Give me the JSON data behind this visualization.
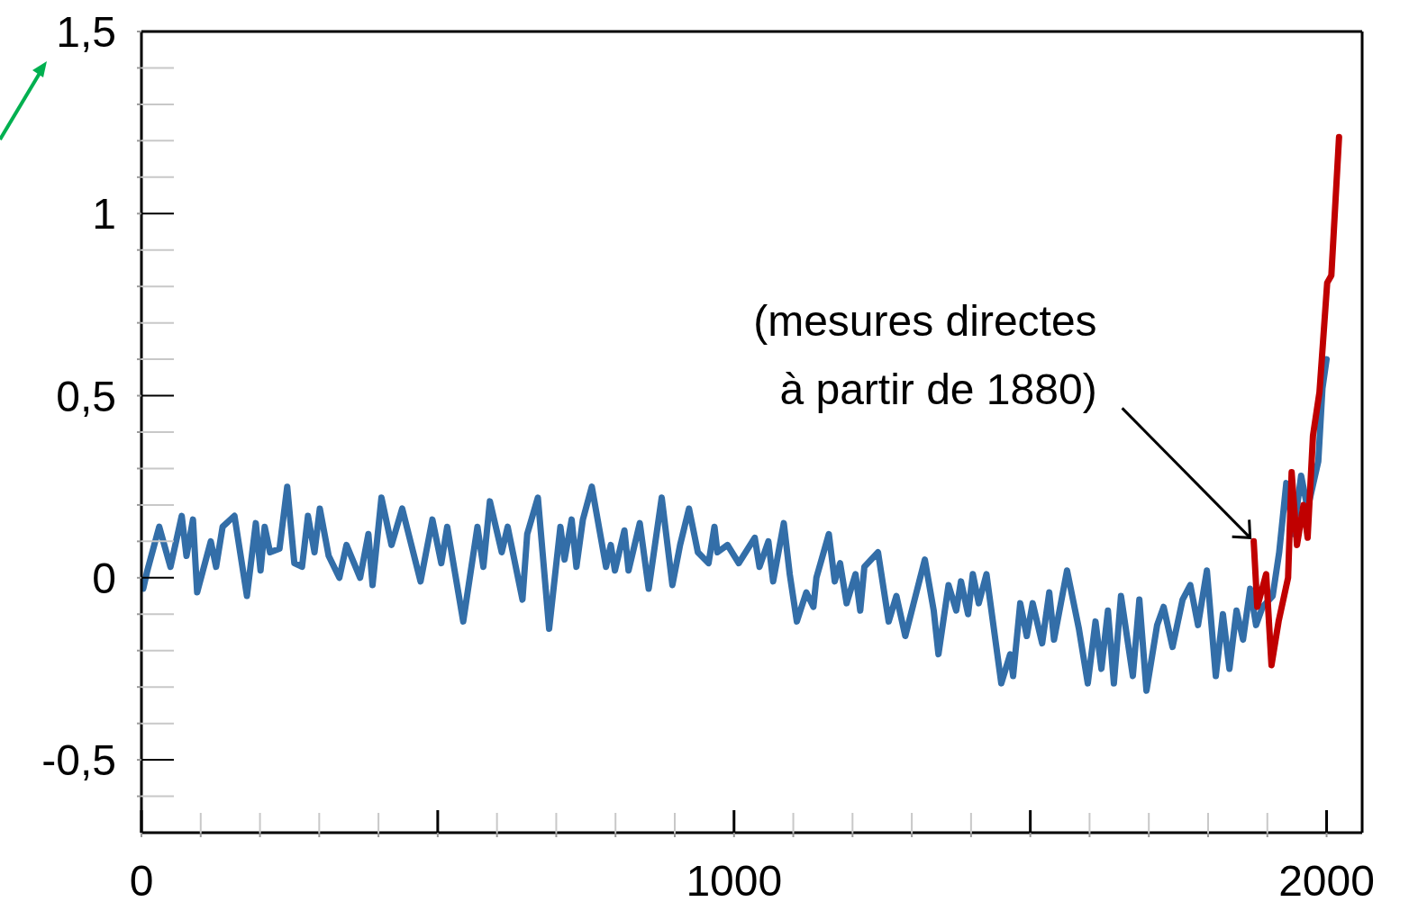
{
  "chart_data": {
    "type": "line",
    "xlim": [
      0,
      2060
    ],
    "ylim": [
      -0.7,
      1.5
    ],
    "xticks": [
      0,
      {
        "value": 100,
        "label": null
      },
      {
        "value": 200,
        "label": null
      },
      {
        "value": 300,
        "label": null
      },
      {
        "value": 400,
        "label": null
      },
      {
        "value": 500,
        "label": null
      },
      {
        "value": 600,
        "label": null
      },
      {
        "value": 700,
        "label": null
      },
      {
        "value": 800,
        "label": null
      },
      {
        "value": 900,
        "label": null
      },
      1000,
      {
        "value": 1100,
        "label": null
      },
      {
        "value": 1200,
        "label": null
      },
      {
        "value": 1300,
        "label": null
      },
      {
        "value": 1400,
        "label": null
      },
      {
        "value": 1500,
        "label": null
      },
      {
        "value": 1600,
        "label": null
      },
      {
        "value": 1700,
        "label": null
      },
      {
        "value": 1800,
        "label": null
      },
      {
        "value": 1900,
        "label": null
      },
      2000
    ],
    "yticks": [
      {
        "value": -0.6,
        "label": null
      },
      {
        "value": -0.5,
        "label": "-0,5"
      },
      {
        "value": -0.4,
        "label": null
      },
      {
        "value": -0.3,
        "label": null
      },
      {
        "value": -0.2,
        "label": null
      },
      {
        "value": -0.1,
        "label": null
      },
      0,
      {
        "value": 0.1,
        "label": null
      },
      {
        "value": 0.2,
        "label": null
      },
      {
        "value": 0.3,
        "label": null
      },
      {
        "value": 0.4,
        "label": null
      },
      {
        "value": 0.5,
        "label": "0,5"
      },
      {
        "value": 0.6,
        "label": null
      },
      {
        "value": 0.7,
        "label": null
      },
      {
        "value": 0.8,
        "label": null
      },
      {
        "value": 0.9,
        "label": null
      },
      1,
      {
        "value": 1.1,
        "label": null
      },
      {
        "value": 1.2,
        "label": null
      },
      {
        "value": 1.3,
        "label": null
      },
      {
        "value": 1.4,
        "label": null
      },
      {
        "value": 1.5,
        "label": "1,5"
      }
    ],
    "grid": false,
    "legend": false,
    "marker": "none",
    "line_style": "solid",
    "annotations": [
      {
        "text": "(mesures directes\nà partir de 1880)",
        "x": 1877,
        "y": 0.1
      }
    ],
    "series": [
      {
        "color": "#336ea8",
        "x": [
          3,
          10,
          30,
          49,
          68,
          76,
          87,
          94,
          117,
          126,
          137,
          157,
          178,
          193,
          201,
          208,
          217,
          233,
          246,
          258,
          271,
          281,
          292,
          301,
          316,
          334,
          346,
          369,
          383,
          390,
          405,
          422,
          440,
          471,
          491,
          506,
          516,
          543,
          567,
          577,
          588,
          608,
          618,
          643,
          651,
          669,
          688,
          707,
          714,
          726,
          734,
          745,
          760,
          784,
          792,
          799,
          815,
          822,
          841,
          856,
          878,
          896,
          909,
          924,
          939,
          957,
          967,
          972,
          989,
          1008,
          1035,
          1043,
          1058,
          1066,
          1084,
          1094,
          1106,
          1122,
          1134,
          1139,
          1160,
          1170,
          1179,
          1190,
          1205,
          1213,
          1220,
          1243,
          1261,
          1274,
          1289,
          1322,
          1337,
          1345,
          1362,
          1375,
          1383,
          1395,
          1403,
          1413,
          1426,
          1436,
          1451,
          1466,
          1471,
          1483,
          1494,
          1504,
          1520,
          1532,
          1540,
          1562,
          1582,
          1597,
          1610,
          1620,
          1631,
          1641,
          1653,
          1673,
          1684,
          1696,
          1714,
          1725,
          1740,
          1757,
          1770,
          1783,
          1798,
          1813,
          1825,
          1836,
          1848,
          1859,
          1871,
          1881,
          1892,
          1909,
          1920,
          1932,
          1944,
          1957,
          1968,
          1986,
          1993,
          2000
        ],
        "values": [
          -0.03,
          0.02,
          0.14,
          0.03,
          0.17,
          0.06,
          0.16,
          -0.04,
          0.1,
          0.03,
          0.14,
          0.17,
          -0.05,
          0.15,
          0.02,
          0.14,
          0.07,
          0.08,
          0.25,
          0.04,
          0.03,
          0.17,
          0.07,
          0.19,
          0.06,
          0.0,
          0.09,
          0.0,
          0.12,
          -0.02,
          0.22,
          0.09,
          0.19,
          -0.01,
          0.16,
          0.04,
          0.14,
          -0.12,
          0.14,
          0.03,
          0.21,
          0.07,
          0.14,
          -0.06,
          0.12,
          0.22,
          -0.14,
          0.14,
          0.05,
          0.16,
          0.03,
          0.16,
          0.25,
          0.03,
          0.09,
          0.02,
          0.13,
          0.02,
          0.15,
          -0.03,
          0.22,
          -0.02,
          0.09,
          0.19,
          0.07,
          0.04,
          0.14,
          0.07,
          0.09,
          0.04,
          0.11,
          0.03,
          0.1,
          -0.01,
          0.15,
          0.01,
          -0.12,
          -0.04,
          -0.08,
          0.0,
          0.12,
          -0.01,
          0.04,
          -0.07,
          0.01,
          -0.09,
          0.03,
          0.07,
          -0.12,
          -0.05,
          -0.16,
          0.05,
          -0.09,
          -0.21,
          -0.02,
          -0.09,
          -0.01,
          -0.1,
          0.01,
          -0.07,
          0.01,
          -0.11,
          -0.29,
          -0.21,
          -0.27,
          -0.07,
          -0.16,
          -0.07,
          -0.18,
          -0.04,
          -0.17,
          0.02,
          -0.14,
          -0.29,
          -0.12,
          -0.25,
          -0.09,
          -0.29,
          -0.05,
          -0.27,
          -0.06,
          -0.31,
          -0.13,
          -0.08,
          -0.19,
          -0.06,
          -0.02,
          -0.13,
          0.02,
          -0.27,
          -0.1,
          -0.25,
          -0.09,
          -0.17,
          -0.03,
          -0.13,
          -0.08,
          -0.05,
          0.07,
          0.26,
          0.12,
          0.28,
          0.19,
          0.32,
          0.52,
          0.6
        ]
      },
      {
        "color": "#c00000",
        "x": [
          1877,
          1883,
          1898,
          1907,
          1919,
          1935,
          1941,
          1950,
          1961,
          1968,
          1977,
          1988,
          2001,
          2008,
          2021
        ],
        "values": [
          0.1,
          -0.08,
          0.01,
          -0.24,
          -0.12,
          0.0,
          0.29,
          0.09,
          0.2,
          0.11,
          0.39,
          0.51,
          0.81,
          0.83,
          1.21
        ]
      }
    ]
  }
}
